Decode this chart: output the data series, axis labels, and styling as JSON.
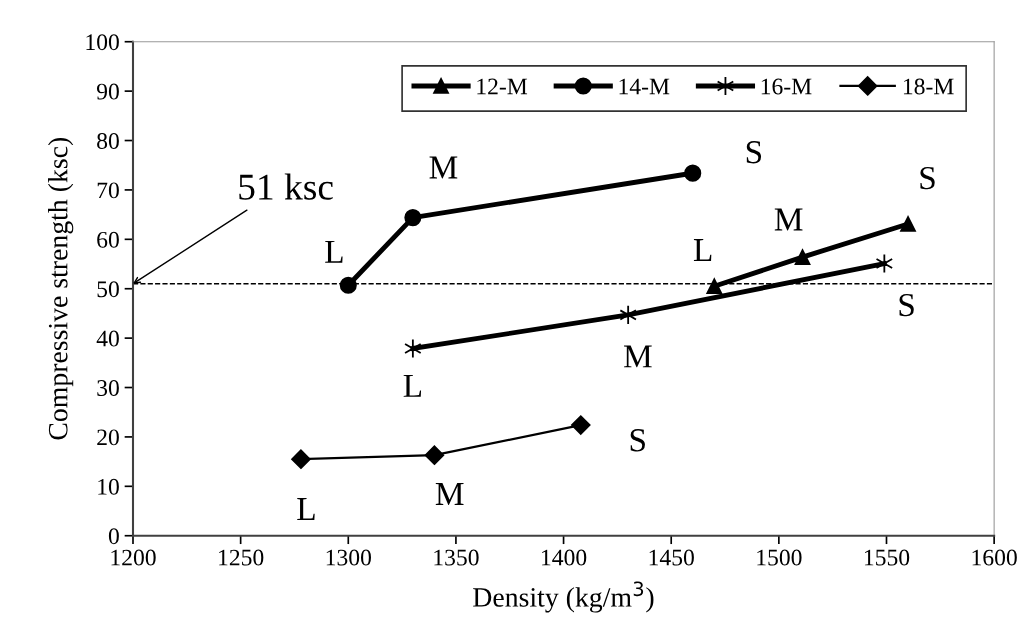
{
  "chart_data": {
    "type": "line",
    "xlabel": "Density (kg/m$^{3}$)",
    "ylabel": "Compressive strength (ksc)",
    "xlim": [
      1200,
      1600
    ],
    "xticks": [
      1200,
      1250,
      1300,
      1350,
      1400,
      1450,
      1500,
      1550,
      1600
    ],
    "ylim": [
      0,
      100
    ],
    "yticks": [
      0,
      10,
      20,
      30,
      40,
      50,
      60,
      70,
      80,
      90,
      100
    ],
    "grid": false,
    "legend": "top",
    "line_style": "solid",
    "series": [
      {
        "name": "12-M",
        "color": "#000000",
        "marker": "triangle",
        "x": [
          1470,
          1511,
          1560
        ],
        "values": [
          50.5,
          56.4,
          63.1
        ]
      },
      {
        "name": "14-M",
        "color": "#000000",
        "marker": "circle",
        "x": [
          1300,
          1330,
          1460
        ],
        "values": [
          50.7,
          64.4,
          73.4
        ]
      },
      {
        "name": "16-M",
        "color": "#000000",
        "marker": "cross",
        "x": [
          1330,
          1430,
          1549
        ],
        "values": [
          37.9,
          44.7,
          55.1
        ]
      },
      {
        "name": "18-M",
        "color": "#000000",
        "marker": "diamond",
        "x": [
          1278,
          1340,
          1408
        ],
        "values": [
          15.5,
          16.3,
          22.4
        ]
      }
    ],
    "ref_lines": [
      {
        "axis": "y",
        "value": 51,
        "label": "51 ksc",
        "color": "#000000",
        "line_style": "dashed"
      }
    ],
    "annotations": [
      {
        "text": "L",
        "x": 1470,
        "y": 50.5
      },
      {
        "text": "M",
        "x": 1511,
        "y": 56.4
      },
      {
        "text": "S",
        "x": 1560,
        "y": 63.1
      },
      {
        "text": "L",
        "x": 1300,
        "y": 50.7
      },
      {
        "text": "M",
        "x": 1330,
        "y": 64.4
      },
      {
        "text": "S",
        "x": 1460,
        "y": 73.4
      },
      {
        "text": "L",
        "x": 1330,
        "y": 37.9
      },
      {
        "text": "M",
        "x": 1430,
        "y": 44.7
      },
      {
        "text": "S",
        "x": 1549,
        "y": 55.1
      },
      {
        "text": "L",
        "x": 1278,
        "y": 15.5
      },
      {
        "text": "M",
        "x": 1340,
        "y": 16.3
      },
      {
        "text": "S",
        "x": 1408,
        "y": 22.4
      }
    ]
  }
}
